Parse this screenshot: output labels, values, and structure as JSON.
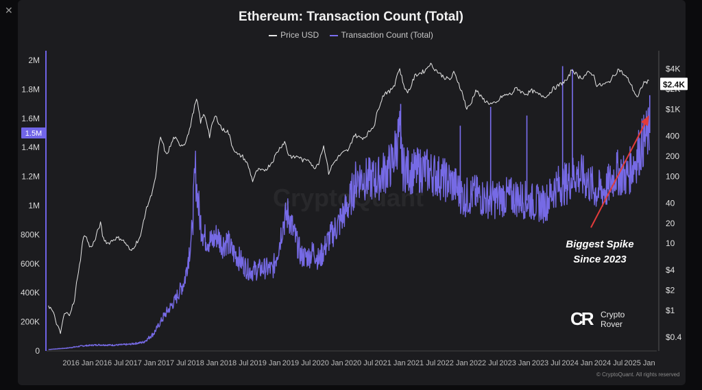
{
  "chart_data": {
    "type": "line",
    "title": "Ethereum: Transaction Count (Total)",
    "legend": [
      "Price USD",
      "Transaction Count (Total)"
    ],
    "legend_placement": "top-center",
    "x_tick_labels": [
      "2016 Jan",
      "2016 Jul",
      "2017 Jan",
      "2017 Jul",
      "2018 Jan",
      "2018 Jul",
      "2019 Jan",
      "2019 Jul",
      "2020 Jan",
      "2020 Jul",
      "2021 Jan",
      "2021 Jul",
      "2022 Jan",
      "2022 Jul",
      "2023 Jan",
      "2023 Jul",
      "2024 Jan",
      "2024 Jul",
      "2025 Jan"
    ],
    "left_axis": {
      "label": "",
      "tick_labels": [
        "0",
        "200K",
        "400K",
        "600K",
        "800K",
        "1M",
        "1.2M",
        "1.4M",
        "1.6M",
        "1.8M",
        "2M"
      ],
      "ticks": [
        0,
        200000,
        400000,
        600000,
        800000,
        1000000,
        1200000,
        1400000,
        1600000,
        1800000,
        2000000
      ],
      "ylim": [
        0,
        2000000
      ],
      "current_value_label": "1.5M",
      "current_value": 1500000
    },
    "right_axis": {
      "label": "",
      "scale": "log",
      "tick_labels": [
        "$0.4",
        "$1",
        "$2",
        "$4",
        "10",
        "20",
        "40",
        "100",
        "200",
        "400",
        "$1K",
        "$2K",
        "$4K"
      ],
      "ticks": [
        0.4,
        1,
        2,
        4,
        10,
        20,
        40,
        100,
        200,
        400,
        1000,
        2000,
        4000
      ],
      "ylim": [
        0.25,
        6500
      ],
      "current_value_label": "$2.4K",
      "current_value": 2400
    },
    "grid": false,
    "series": [
      {
        "name": "Price USD",
        "color": "#e8e8e8",
        "axis": "right",
        "points": [
          [
            "2015-08-10",
            1.2
          ],
          [
            "2015-09-01",
            1.0
          ],
          [
            "2015-10-01",
            0.6
          ],
          [
            "2015-10-21",
            0.45
          ],
          [
            "2015-11-15",
            0.9
          ],
          [
            "2015-12-15",
            0.9
          ],
          [
            "2016-01-15",
            1.4
          ],
          [
            "2016-02-15",
            5
          ],
          [
            "2016-03-13",
            14
          ],
          [
            "2016-04-15",
            8.5
          ],
          [
            "2016-05-15",
            11
          ],
          [
            "2016-06-17",
            20
          ],
          [
            "2016-07-01",
            12
          ],
          [
            "2016-08-01",
            10
          ],
          [
            "2016-09-15",
            12
          ],
          [
            "2016-10-15",
            12
          ],
          [
            "2016-11-15",
            10
          ],
          [
            "2016-12-15",
            7.5
          ],
          [
            "2017-01-15",
            10
          ],
          [
            "2017-02-15",
            13
          ],
          [
            "2017-03-15",
            30
          ],
          [
            "2017-04-15",
            50
          ],
          [
            "2017-05-15",
            95
          ],
          [
            "2017-06-12",
            380
          ],
          [
            "2017-07-15",
            200
          ],
          [
            "2017-08-15",
            300
          ],
          [
            "2017-09-01",
            390
          ],
          [
            "2017-10-01",
            300
          ],
          [
            "2017-11-01",
            300
          ],
          [
            "2017-12-01",
            460
          ],
          [
            "2017-12-20",
            800
          ],
          [
            "2018-01-13",
            1380
          ],
          [
            "2018-02-06",
            650
          ],
          [
            "2018-03-01",
            850
          ],
          [
            "2018-04-01",
            390
          ],
          [
            "2018-05-05",
            800
          ],
          [
            "2018-06-15",
            500
          ],
          [
            "2018-07-20",
            470
          ],
          [
            "2018-08-15",
            280
          ],
          [
            "2018-09-15",
            210
          ],
          [
            "2018-10-15",
            200
          ],
          [
            "2018-11-15",
            150
          ],
          [
            "2018-12-14",
            85
          ],
          [
            "2019-01-15",
            125
          ],
          [
            "2019-02-15",
            120
          ],
          [
            "2019-03-15",
            135
          ],
          [
            "2019-04-15",
            170
          ],
          [
            "2019-05-15",
            240
          ],
          [
            "2019-06-26",
            330
          ],
          [
            "2019-07-15",
            215
          ],
          [
            "2019-08-15",
            190
          ],
          [
            "2019-09-15",
            200
          ],
          [
            "2019-10-15",
            170
          ],
          [
            "2019-11-15",
            185
          ],
          [
            "2019-12-15",
            130
          ],
          [
            "2020-01-15",
            160
          ],
          [
            "2020-02-14",
            280
          ],
          [
            "2020-03-13",
            110
          ],
          [
            "2020-04-15",
            160
          ],
          [
            "2020-05-15",
            200
          ],
          [
            "2020-06-15",
            230
          ],
          [
            "2020-07-15",
            250
          ],
          [
            "2020-08-15",
            420
          ],
          [
            "2020-09-15",
            380
          ],
          [
            "2020-10-15",
            380
          ],
          [
            "2020-11-15",
            470
          ],
          [
            "2020-12-15",
            600
          ],
          [
            "2021-01-15",
            1200
          ],
          [
            "2021-02-15",
            1800
          ],
          [
            "2021-03-15",
            1800
          ],
          [
            "2021-04-15",
            2400
          ],
          [
            "2021-05-12",
            4100
          ],
          [
            "2021-06-01",
            2600
          ],
          [
            "2021-06-22",
            1800
          ],
          [
            "2021-07-15",
            2000
          ],
          [
            "2021-08-15",
            3200
          ],
          [
            "2021-09-15",
            3500
          ],
          [
            "2021-10-15",
            3800
          ],
          [
            "2021-11-10",
            4800
          ],
          [
            "2021-12-15",
            3900
          ],
          [
            "2022-01-15",
            3300
          ],
          [
            "2022-02-15",
            2900
          ],
          [
            "2022-03-15",
            2800
          ],
          [
            "2022-04-03",
            3500
          ],
          [
            "2022-05-15",
            2000
          ],
          [
            "2022-06-18",
            1000
          ],
          [
            "2022-07-15",
            1200
          ],
          [
            "2022-08-14",
            1950
          ],
          [
            "2022-09-15",
            1500
          ],
          [
            "2022-10-15",
            1300
          ],
          [
            "2022-11-15",
            1200
          ],
          [
            "2022-12-15",
            1230
          ],
          [
            "2023-01-15",
            1550
          ],
          [
            "2023-02-15",
            1650
          ],
          [
            "2023-03-15",
            1700
          ],
          [
            "2023-04-15",
            2100
          ],
          [
            "2023-05-15",
            1800
          ],
          [
            "2023-06-15",
            1700
          ],
          [
            "2023-07-15",
            1900
          ],
          [
            "2023-08-15",
            1700
          ],
          [
            "2023-09-15",
            1600
          ],
          [
            "2023-10-15",
            1570
          ],
          [
            "2023-11-15",
            2000
          ],
          [
            "2023-12-15",
            2200
          ],
          [
            "2024-01-15",
            2500
          ],
          [
            "2024-02-15",
            2800
          ],
          [
            "2024-03-12",
            4000
          ],
          [
            "2024-04-15",
            3100
          ],
          [
            "2024-05-15",
            3000
          ],
          [
            "2024-06-15",
            3500
          ],
          [
            "2024-07-15",
            3400
          ],
          [
            "2024-08-05",
            2300
          ],
          [
            "2024-09-07",
            2300
          ],
          [
            "2024-10-15",
            2500
          ],
          [
            "2024-11-15",
            3100
          ],
          [
            "2024-12-16",
            4000
          ],
          [
            "2025-01-15",
            3300
          ],
          [
            "2025-02-15",
            2700
          ],
          [
            "2025-03-15",
            1900
          ],
          [
            "2025-04-09",
            1450
          ],
          [
            "2025-05-15",
            2500
          ],
          [
            "2025-06-15",
            2600
          ]
        ]
      },
      {
        "name": "Transaction Count (Total)",
        "color": "#7b6ff0",
        "axis": "left",
        "points": [
          [
            "2015-08-10",
            10000
          ],
          [
            "2015-12-01",
            20000
          ],
          [
            "2016-03-01",
            35000
          ],
          [
            "2016-06-01",
            42000
          ],
          [
            "2016-09-01",
            40000
          ],
          [
            "2016-12-01",
            45000
          ],
          [
            "2017-03-01",
            60000
          ],
          [
            "2017-05-01",
            120000
          ],
          [
            "2017-07-01",
            240000
          ],
          [
            "2017-09-01",
            340000
          ],
          [
            "2017-11-01",
            480000
          ],
          [
            "2017-12-15",
            800000
          ],
          [
            "2018-01-04",
            1250000
          ],
          [
            "2018-02-01",
            900000
          ],
          [
            "2018-03-01",
            780000
          ],
          [
            "2018-04-15",
            750000
          ],
          [
            "2018-05-15",
            800000
          ],
          [
            "2018-06-15",
            730000
          ],
          [
            "2018-07-15",
            760000
          ],
          [
            "2018-08-15",
            680000
          ],
          [
            "2018-09-15",
            650000
          ],
          [
            "2018-10-15",
            600000
          ],
          [
            "2018-11-15",
            560000
          ],
          [
            "2018-12-15",
            550000
          ],
          [
            "2019-01-15",
            560000
          ],
          [
            "2019-03-01",
            570000
          ],
          [
            "2019-04-15",
            560000
          ],
          [
            "2019-05-15",
            700000
          ],
          [
            "2019-06-15",
            880000
          ],
          [
            "2019-07-15",
            950000
          ],
          [
            "2019-08-15",
            820000
          ],
          [
            "2019-10-01",
            650000
          ],
          [
            "2019-11-15",
            650000
          ],
          [
            "2019-12-15",
            690000
          ],
          [
            "2020-01-15",
            620000
          ],
          [
            "2020-02-15",
            700000
          ],
          [
            "2020-03-15",
            770000
          ],
          [
            "2020-05-15",
            880000
          ],
          [
            "2020-07-15",
            1020000
          ],
          [
            "2020-09-01",
            1200000
          ],
          [
            "2020-11-01",
            1180000
          ],
          [
            "2021-01-01",
            1180000
          ],
          [
            "2021-02-01",
            1220000
          ],
          [
            "2021-03-01",
            1250000
          ],
          [
            "2021-04-01",
            1300000
          ],
          [
            "2021-05-10",
            1500000
          ],
          [
            "2021-06-01",
            1260000
          ],
          [
            "2021-08-01",
            1230000
          ],
          [
            "2021-10-01",
            1250000
          ],
          [
            "2021-12-01",
            1220000
          ],
          [
            "2022-02-01",
            1180000
          ],
          [
            "2022-04-01",
            1150000
          ],
          [
            "2022-06-01",
            1050000
          ],
          [
            "2022-08-01",
            1080000
          ],
          [
            "2022-10-01",
            1050000
          ],
          [
            "2022-12-01",
            1040000
          ],
          [
            "2023-02-01",
            1060000
          ],
          [
            "2023-04-01",
            1060000
          ],
          [
            "2023-06-01",
            1040000
          ],
          [
            "2023-08-01",
            1020000
          ],
          [
            "2023-10-01",
            1010000
          ],
          [
            "2023-12-01",
            1130000
          ],
          [
            "2024-02-01",
            1150000
          ],
          [
            "2024-04-01",
            1220000
          ],
          [
            "2024-06-01",
            1180000
          ],
          [
            "2024-08-01",
            1100000
          ],
          [
            "2024-10-01",
            1110000
          ],
          [
            "2024-12-01",
            1230000
          ],
          [
            "2025-02-01",
            1200000
          ],
          [
            "2025-04-01",
            1330000
          ],
          [
            "2025-05-15",
            1450000
          ],
          [
            "2025-06-15",
            1500000
          ]
        ],
        "spikes": [
          [
            "2021-05-20",
            1700000
          ],
          [
            "2022-05-12",
            1550000
          ],
          [
            "2022-11-10",
            1680000
          ],
          [
            "2023-06-15",
            1620000
          ],
          [
            "2024-01-15",
            1960000
          ],
          [
            "2024-03-14",
            1940000
          ],
          [
            "2025-06-20",
            1760000
          ]
        ]
      }
    ],
    "annotation": {
      "text_line_1": "Biggest Spike",
      "text_line_2": "Since 2023"
    }
  },
  "header": {
    "close_glyph": "✕"
  },
  "watermark": "CryptoQuant",
  "branding": {
    "logo_mark": "CR",
    "logo_line_1": "Crypto",
    "logo_line_2": "Rover",
    "copyright": "© CryptoQuant. All rights reserved"
  }
}
